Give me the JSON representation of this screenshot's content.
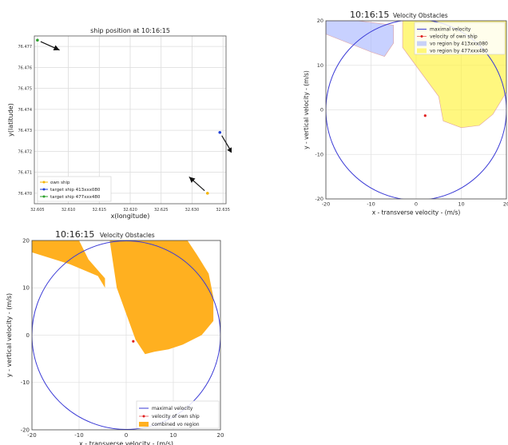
{
  "chart_data": [
    {
      "type": "scatter",
      "title": "ship position at 10:16:15",
      "xlabel": "x(longitude)",
      "ylabel": "y(latitude)",
      "xlim": [
        32.6045,
        32.6355
      ],
      "ylim": [
        76.4695,
        76.4775
      ],
      "grid": true,
      "x_ticks": [
        "32.605",
        "32.610",
        "32.615",
        "32.620",
        "32.625",
        "32.630",
        "32.635"
      ],
      "y_ticks": [
        "76.470",
        "76.471",
        "76.472",
        "76.473",
        "76.474",
        "76.475",
        "76.476",
        "76.477"
      ],
      "legend_position": "lower-left",
      "series": [
        {
          "name": "own ship",
          "color": "#f4b400",
          "x": [
            32.6325
          ],
          "y": [
            76.47
          ],
          "heading": [
            -0.9,
            0.8
          ]
        },
        {
          "name": "target ship 413xxx080",
          "color": "#1f3fd6",
          "x": [
            32.6345
          ],
          "y": [
            76.4729
          ],
          "heading": [
            0.6,
            -1.0
          ]
        },
        {
          "name": "target ship 477xxx480",
          "color": "#2ca02c",
          "x": [
            32.605
          ],
          "y": [
            76.4773
          ],
          "heading": [
            1.0,
            -0.45
          ]
        }
      ]
    },
    {
      "type": "area",
      "title": "Velocity Obstacles",
      "time_label": "10:16:15",
      "xlabel": "x - transverse velocity - (m/s)",
      "ylabel": "y - vertical velocity - (m/s)",
      "xlim": [
        -20,
        20
      ],
      "ylim": [
        -20,
        20
      ],
      "x_ticks": [
        "-20",
        "-10",
        "0",
        "10",
        "20"
      ],
      "y_ticks": [
        "-20",
        "-10",
        "0",
        "10",
        "20"
      ],
      "grid": true,
      "legend_position": "top-right",
      "max_velocity_radius": 20,
      "own_velocity": [
        2,
        -1.3
      ],
      "series": [
        {
          "name": "maximal velocity",
          "color": "#3a3ad6"
        },
        {
          "name": "velocity of own ship",
          "color": "#e02020"
        },
        {
          "name": "vo region by 413xxx080",
          "color": "#aab8ff",
          "polygon": [
            [
              -20,
              20
            ],
            [
              -13,
              20
            ],
            [
              -5,
              19
            ],
            [
              -5,
              15
            ],
            [
              -7,
              12
            ],
            [
              -10,
              13
            ],
            [
              -20,
              17
            ]
          ]
        },
        {
          "name": "vo region by 477xxx480",
          "color": "#fff23a",
          "polygon": [
            [
              -3,
              20
            ],
            [
              20,
              20
            ],
            [
              20,
              4
            ],
            [
              17,
              -1
            ],
            [
              14,
              -3.5
            ],
            [
              10,
              -4
            ],
            [
              6,
              -2.5
            ],
            [
              5,
              3
            ],
            [
              -3,
              14
            ]
          ]
        }
      ]
    },
    {
      "type": "area",
      "title": "Velocity Obstacles",
      "time_label": "10:16:15",
      "xlabel": "x - transverse velocity - (m/s)",
      "ylabel": "y - vertical velocity - (m/s)",
      "xlim": [
        -20,
        20
      ],
      "ylim": [
        -20,
        20
      ],
      "x_ticks": [
        "-20",
        "-10",
        "0",
        "10",
        "20"
      ],
      "y_ticks": [
        "-20",
        "-10",
        "0",
        "10",
        "20"
      ],
      "grid": true,
      "legend_position": "lower-right",
      "max_velocity_radius": 20,
      "own_velocity": [
        1.5,
        -1.3
      ],
      "series": [
        {
          "name": "maximal velocity",
          "color": "#3a3ad6"
        },
        {
          "name": "velocity of own ship",
          "color": "#e02020"
        },
        {
          "name": "combined vo region",
          "color": "#ffb020",
          "polygons": [
            [
              [
                -20,
                20
              ],
              [
                -20,
                17.5
              ],
              [
                -12,
                15
              ],
              [
                -6,
                12.5
              ],
              [
                -4.5,
                10
              ],
              [
                -4.5,
                12
              ],
              [
                -8,
                16
              ],
              [
                -10,
                20
              ]
            ],
            [
              [
                -3.5,
                20
              ],
              [
                13,
                20
              ],
              [
                15,
                17
              ],
              [
                17.5,
                13
              ],
              [
                18.5,
                8
              ],
              [
                18.5,
                3
              ],
              [
                16,
                0
              ],
              [
                12,
                -2
              ],
              [
                9,
                -3
              ],
              [
                6,
                -3.5
              ],
              [
                4,
                -4
              ],
              [
                2,
                -1
              ],
              [
                -2,
                10
              ]
            ]
          ]
        }
      ]
    }
  ]
}
